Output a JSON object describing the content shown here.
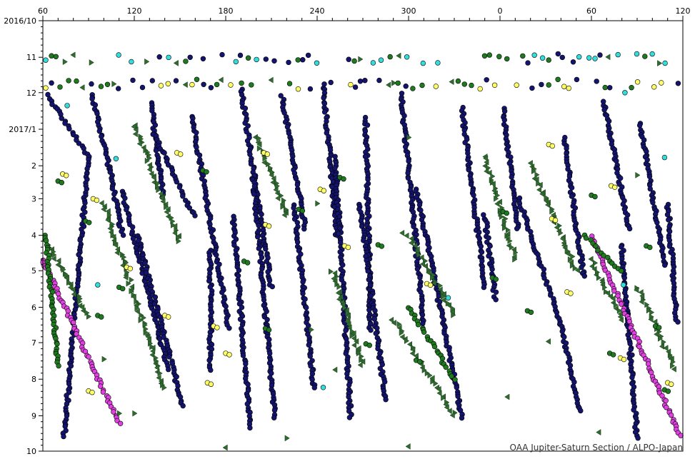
{
  "chart_data": {
    "type": "scatter",
    "title": "",
    "xlabel": "",
    "ylabel": "",
    "credit": "OAA Jupiter-Saturn Section / ALPO-Japan",
    "x_axis": {
      "quantity": "longitude",
      "unit": "degrees",
      "range_unwrapped": [
        60,
        480
      ],
      "tick_values_unwrapped": [
        60,
        120,
        180,
        240,
        300,
        360,
        420,
        480
      ],
      "tick_labels": [
        "60",
        "120",
        "180",
        "240",
        "300",
        "0",
        "60",
        "120"
      ],
      "minor_tick_step": 10
    },
    "y_axis": {
      "quantity": "date",
      "range": [
        "2016-10-01",
        "2017-10-01"
      ],
      "inverted": true,
      "tick_dates": [
        "2016-10-01",
        "2016-11-01",
        "2016-12-01",
        "2017-01-01",
        "2017-02-01",
        "2017-03-01",
        "2017-04-01",
        "2017-05-01",
        "2017-06-01",
        "2017-07-01",
        "2017-08-01",
        "2017-09-01",
        "2017-10-01"
      ],
      "tick_labels": [
        "2016/10",
        "11",
        "12",
        "2017/1",
        "2",
        "3",
        "4",
        "5",
        "6",
        "7",
        "8",
        "9",
        "10"
      ]
    },
    "grid": false,
    "legend": "none",
    "marker_styles": {
      "navy_dot": "#14146e",
      "green_dot": "#1e7a1e",
      "yellow_dot": "#ffff66",
      "cyan_dot": "#33dddd",
      "magenta_dot": "#e040e0",
      "green_triangle": "#2f6b2f"
    },
    "series": [
      {
        "style": "navy_dot",
        "tracks": [
          {
            "from": [
              "2016-12-03",
              63
            ],
            "to": [
              "2017-01-25",
              90
            ]
          },
          {
            "from": [
              "2017-01-25",
              90
            ],
            "to": [
              "2017-09-18",
              74
            ]
          },
          {
            "from": [
              "2016-12-02",
              92
            ],
            "to": [
              "2017-02-04",
              104
            ]
          },
          {
            "from": [
              "2017-02-04",
              104
            ],
            "to": [
              "2017-04-01",
              112
            ]
          },
          {
            "from": [
              "2017-02-22",
              112
            ],
            "to": [
              "2017-07-23",
              142
            ]
          },
          {
            "from": [
              "2016-12-10",
              131
            ],
            "to": [
              "2017-02-27",
              139
            ]
          },
          {
            "from": [
              "2017-01-05",
              133
            ],
            "to": [
              "2017-03-16",
              159
            ]
          },
          {
            "from": [
              "2017-04-01",
              122
            ],
            "to": [
              "2017-08-24",
              152
            ]
          },
          {
            "from": [
              "2016-12-21",
              158
            ],
            "to": [
              "2017-06-18",
              182
            ]
          },
          {
            "from": [
              "2017-04-14",
              170
            ],
            "to": [
              "2017-07-24",
              170
            ]
          },
          {
            "from": [
              "2017-03-16",
              185
            ],
            "to": [
              "2017-09-11",
              196
            ]
          },
          {
            "from": [
              "2016-11-28",
              190
            ],
            "to": [
              "2017-05-15",
              210
            ]
          },
          {
            "from": [
              "2017-02-09",
              198
            ],
            "to": [
              "2017-09-02",
              212
            ]
          },
          {
            "from": [
              "2016-12-04",
              217
            ],
            "to": [
              "2017-03-26",
              232
            ]
          },
          {
            "from": [
              "2017-03-07",
              225
            ],
            "to": [
              "2017-08-09",
              238
            ]
          },
          {
            "from": [
              "2016-11-24",
              244
            ],
            "to": [
              "2017-04-02",
              253
            ]
          },
          {
            "from": [
              "2017-01-25",
              252
            ],
            "to": [
              "2017-09-02",
              262
            ]
          },
          {
            "from": [
              "2016-12-22",
              272
            ],
            "to": [
              "2017-06-21",
              275
            ]
          },
          {
            "from": [
              "2017-03-05",
              268
            ],
            "to": [
              "2017-08-18",
              285
            ]
          },
          {
            "from": [
              "2016-12-02",
              295
            ],
            "to": [
              "2017-06-15",
              310
            ]
          },
          {
            "from": [
              "2017-02-20",
              305
            ],
            "to": [
              "2017-09-02",
              335
            ]
          },
          {
            "from": [
              "2016-12-14",
              335
            ],
            "to": [
              "2017-05-15",
              350
            ]
          },
          {
            "from": [
              "2017-03-15",
              350
            ],
            "to": [
              "2017-05-25",
              357
            ]
          },
          {
            "from": [
              "2016-12-15",
              362
            ],
            "to": [
              "2017-03-27",
              372
            ]
          },
          {
            "from": [
              "2017-03-01",
              372
            ],
            "to": [
              "2017-06-15",
              400
            ]
          },
          {
            "from": [
              "2017-06-15",
              400
            ],
            "to": [
              "2017-08-28",
              412
            ]
          },
          {
            "from": [
              "2017-01-08",
              402
            ],
            "to": [
              "2017-05-06",
              415
            ]
          },
          {
            "from": [
              "2016-12-09",
              428
            ],
            "to": [
              "2017-03-27",
              445
            ]
          },
          {
            "from": [
              "2017-04-09",
              440
            ],
            "to": [
              "2017-09-20",
              450
            ]
          },
          {
            "from": [
              "2016-12-27",
              452
            ],
            "to": [
              "2017-04-27",
              468
            ]
          },
          {
            "from": [
              "2017-03-05",
              470
            ],
            "to": [
              "2017-06-13",
              476
            ]
          }
        ]
      },
      {
        "style": "magenta_dot",
        "tracks": [
          {
            "from": [
              "2017-04-22",
              60
            ],
            "to": [
              "2017-09-08",
              110
            ]
          },
          {
            "from": [
              "2017-04-02",
              420
            ],
            "to": [
              "2017-09-18",
              478
            ]
          }
        ]
      },
      {
        "style": "green_triangle",
        "tracks": [
          {
            "from": [
              "2017-04-06",
              62
            ],
            "to": [
              "2017-06-09",
              90
            ]
          },
          {
            "from": [
              "2017-03-05",
              100
            ],
            "to": [
              "2017-08-09",
              140
            ]
          },
          {
            "from": [
              "2016-12-28",
              120
            ],
            "to": [
              "2017-04-06",
              150
            ]
          },
          {
            "from": [
              "2017-01-07",
              200
            ],
            "to": [
              "2017-03-15",
              220
            ]
          },
          {
            "from": [
              "2017-05-01",
              250
            ],
            "to": [
              "2017-07-20",
              270
            ]
          },
          {
            "from": [
              "2017-06-11",
              290
            ],
            "to": [
              "2017-09-01",
              330
            ]
          },
          {
            "from": [
              "2017-04-01",
              300
            ],
            "to": [
              "2017-06-07",
              330
            ]
          },
          {
            "from": [
              "2017-01-24",
              350
            ],
            "to": [
              "2017-04-21",
              370
            ]
          },
          {
            "from": [
              "2017-04-22",
              420
            ],
            "to": [
              "2017-06-11",
              440
            ]
          },
          {
            "from": [
              "2017-01-30",
              380
            ],
            "to": [
              "2017-05-01",
              410
            ]
          },
          {
            "from": [
              "2017-05-15",
              450
            ],
            "to": [
              "2017-07-23",
              475
            ]
          }
        ]
      },
      {
        "style": "green_dot",
        "tracks": [
          {
            "from": [
              "2017-04-01",
              62
            ],
            "to": [
              "2017-07-20",
              70
            ]
          },
          {
            "from": [
              "2017-06-01",
              300
            ],
            "to": [
              "2017-08-01",
              330
            ]
          },
          {
            "from": [
              "2017-04-01",
              415
            ],
            "to": [
              "2017-05-02",
              440
            ]
          }
        ]
      }
    ],
    "row_bands": [
      {
        "date": "2016-11-02",
        "styles": [
          "navy_dot",
          "green_dot",
          "green_triangle",
          "cyan_dot"
        ]
      },
      {
        "date": "2016-11-24",
        "styles": [
          "navy_dot",
          "green_dot",
          "yellow_dot",
          "green_triangle"
        ]
      }
    ],
    "scatter_points": {
      "yellow_dot": [
        [
          "2017-02-08",
          73
        ],
        [
          "2017-03-01",
          93
        ],
        [
          "2017-04-28",
          115
        ],
        [
          "2017-06-08",
          140
        ],
        [
          "2017-06-17",
          172
        ],
        [
          "2017-07-10",
          180
        ],
        [
          "2017-08-04",
          168
        ],
        [
          "2017-01-21",
          205
        ],
        [
          "2017-02-21",
          242
        ],
        [
          "2017-04-10",
          258
        ],
        [
          "2017-05-12",
          312
        ],
        [
          "2017-01-14",
          392
        ],
        [
          "2017-03-18",
          394
        ],
        [
          "2017-05-19",
          404
        ],
        [
          "2017-07-14",
          439
        ],
        [
          "2017-02-18",
          433
        ],
        [
          "2017-08-04",
          470
        ],
        [
          "2017-01-21",
          148
        ],
        [
          "2017-03-23",
          206
        ],
        [
          "2017-08-11",
          90
        ]
      ],
      "cyan_dot": [
        [
          "2017-05-13",
          96
        ],
        [
          "2017-01-26",
          108
        ],
        [
          "2016-12-12",
          76
        ],
        [
          "2017-05-24",
          326
        ],
        [
          "2017-08-08",
          244
        ],
        [
          "2017-05-13",
          441
        ],
        [
          "2017-01-25",
          468
        ],
        [
          "2016-12-01",
          442
        ]
      ],
      "green_dot": [
        [
          "2017-02-14",
          70
        ],
        [
          "2017-03-20",
          88
        ],
        [
          "2017-05-15",
          110
        ],
        [
          "2017-06-08",
          96
        ],
        [
          "2017-02-05",
          165
        ],
        [
          "2017-04-23",
          192
        ],
        [
          "2017-06-19",
          206
        ],
        [
          "2017-03-10",
          228
        ],
        [
          "2017-07-02",
          272
        ],
        [
          "2017-02-11",
          255
        ],
        [
          "2017-04-09",
          280
        ],
        [
          "2017-07-16",
          305
        ],
        [
          "2017-05-07",
          355
        ],
        [
          "2017-06-04",
          378
        ],
        [
          "2017-02-26",
          420
        ],
        [
          "2017-07-10",
          432
        ],
        [
          "2017-04-10",
          456
        ],
        [
          "2017-08-10",
          468
        ],
        [
          "2017-06-17",
          462
        ],
        [
          "2017-03-12",
          362
        ]
      ],
      "green_triangle": [
        [
          "2017-07-15",
          100
        ],
        [
          "2017-08-30",
          110
        ],
        [
          "2017-03-05",
          240
        ],
        [
          "2017-06-20",
          236
        ],
        [
          "2017-07-24",
          252
        ],
        [
          "2017-01-08",
          300
        ],
        [
          "2017-03-30",
          296
        ],
        [
          "2017-08-16",
          365
        ],
        [
          "2017-06-30",
          392
        ],
        [
          "2017-02-09",
          450
        ],
        [
          "2017-09-15",
          425
        ],
        [
          "2017-09-27",
          300
        ],
        [
          "2017-09-28",
          180
        ],
        [
          "2017-09-20",
          220
        ],
        [
          "2017-08-30",
          120
        ]
      ]
    }
  }
}
